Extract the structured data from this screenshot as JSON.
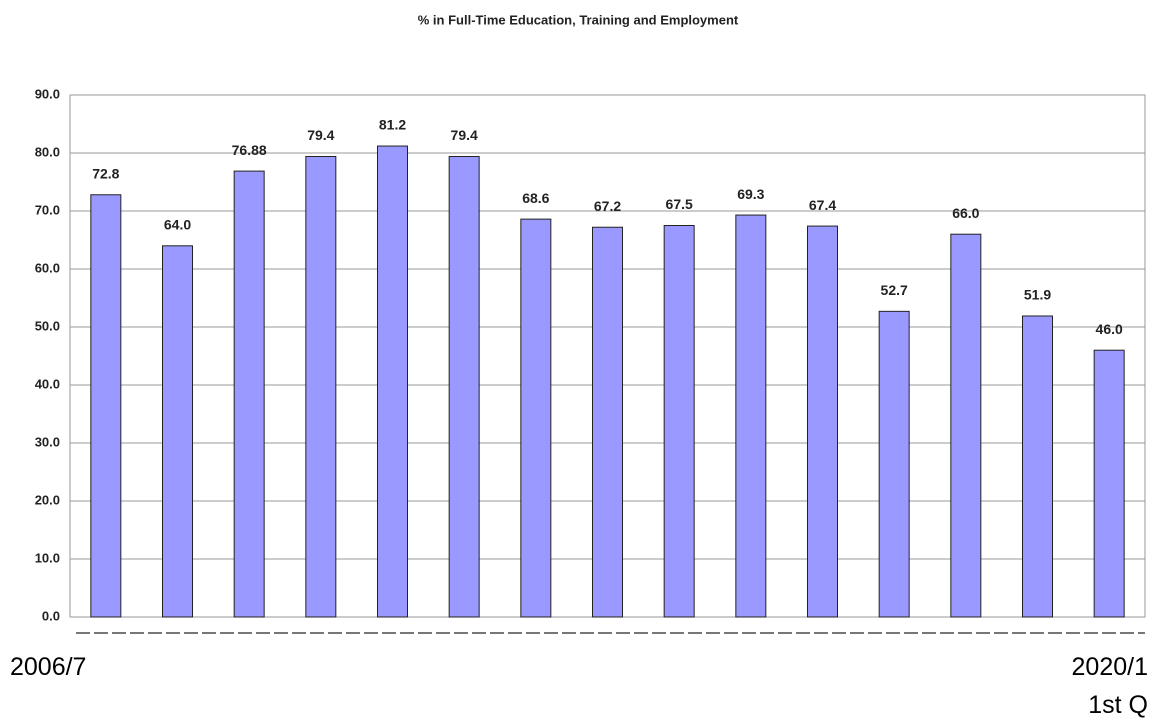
{
  "chart_data": {
    "type": "bar",
    "title": "% in Full-Time Education, Training and Employment",
    "categories": [
      "2006/7",
      null,
      null,
      null,
      null,
      null,
      null,
      null,
      null,
      null,
      null,
      null,
      null,
      null,
      "2020/1\n1st Q"
    ],
    "values": [
      72.8,
      64.0,
      76.88,
      79.4,
      81.2,
      79.4,
      68.6,
      67.2,
      67.5,
      69.3,
      67.4,
      52.7,
      66.0,
      51.9,
      46.0
    ],
    "value_labels": [
      "72.8",
      "64.0",
      "76.88",
      "79.4",
      "81.2",
      "79.4",
      "68.6",
      "67.2",
      "67.5",
      "69.3",
      "67.4",
      "52.7",
      "66.0",
      "51.9",
      "46.0"
    ],
    "color": "#9999ff",
    "ylim": [
      0,
      90
    ],
    "yticks": [
      {
        "value": 0,
        "label": "0.0"
      },
      {
        "value": 10,
        "label": "10.0"
      },
      {
        "value": 20,
        "label": "20.0"
      },
      {
        "value": 30,
        "label": "30.0"
      },
      {
        "value": 40,
        "label": "40.0"
      },
      {
        "value": 50,
        "label": "50.0"
      },
      {
        "value": 60,
        "label": "60.0"
      },
      {
        "value": 70,
        "label": "70.0"
      },
      {
        "value": 80,
        "label": "80.0"
      },
      {
        "value": 90,
        "label": "90.0"
      }
    ],
    "grid": true
  }
}
